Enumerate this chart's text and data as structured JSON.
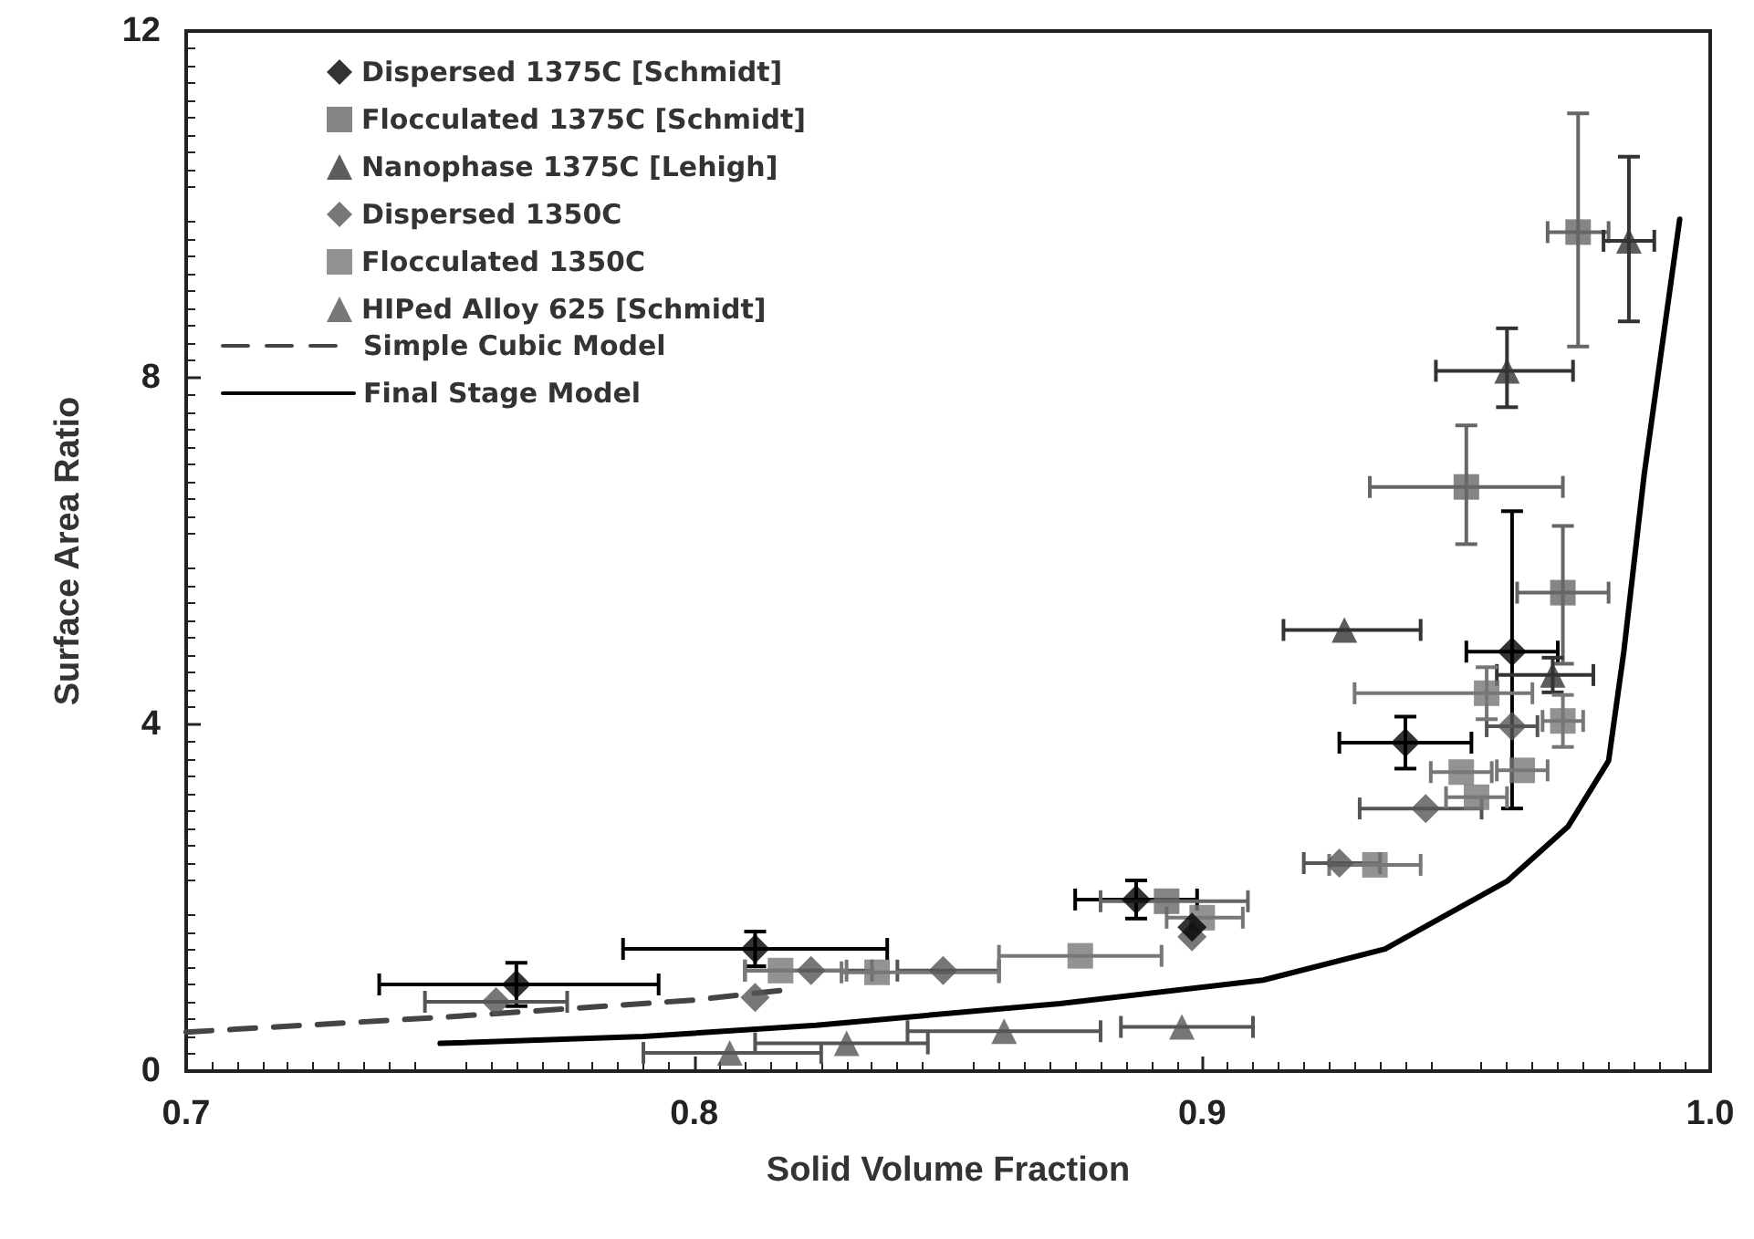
{
  "chart_data": {
    "type": "scatter",
    "xlabel": "Solid Volume Fraction",
    "ylabel": "Surface Area Ratio",
    "xlim": [
      0.7,
      1.0
    ],
    "xticks": [
      {
        "value": 0.7,
        "label": "0.7"
      },
      {
        "value": 0.8,
        "label": "0.8"
      },
      {
        "value": 0.9,
        "label": "0.9"
      },
      {
        "value": 1.0,
        "label": "1.0"
      }
    ],
    "ylim": [
      0,
      12
    ],
    "yticks": [
      0,
      4,
      8,
      12
    ],
    "grid": false,
    "legend": "top left",
    "series": [
      {
        "name": "Dispersed 1375C [Schmidt]",
        "color": "#000000",
        "marker": "diamond",
        "x": [
          0.765,
          0.812,
          0.887,
          0.898,
          0.94,
          0.961
        ],
        "values": [
          1.0,
          1.41,
          1.98,
          1.66,
          3.79,
          4.84
        ],
        "xerrors": [
          [
            0.738,
            0.793
          ],
          [
            0.786,
            0.838
          ],
          [
            0.875,
            0.899
          ],
          null,
          [
            0.927,
            0.953
          ],
          [
            0.952,
            0.97
          ]
        ],
        "errors": [
          0.25,
          0.2,
          0.22,
          null,
          0.3,
          [
            3.03,
            6.46
          ]
        ]
      },
      {
        "name": "Flocculated 1375C [Schmidt]",
        "color": "#666666",
        "marker": "square",
        "x": [
          0.893,
          0.952,
          0.971,
          0.974
        ],
        "values": [
          1.96,
          6.74,
          5.52,
          9.68
        ],
        "xerrors": [
          [
            0.88,
            0.909
          ],
          [
            0.933,
            0.971
          ],
          [
            0.962,
            0.98
          ],
          [
            0.968,
            0.98
          ]
        ],
        "errors": [
          null,
          [
            6.08,
            7.45
          ],
          [
            4.7,
            6.29
          ],
          [
            8.36,
            11.05
          ]
        ]
      },
      {
        "name": "Nanophase 1375C [Lehigh]",
        "color": "#333333",
        "marker": "triangle",
        "x": [
          0.928,
          0.96,
          0.969,
          0.984
        ],
        "values": [
          5.09,
          8.08,
          4.57,
          9.58
        ],
        "xerrors": [
          [
            0.916,
            0.943
          ],
          [
            0.946,
            0.973
          ],
          [
            0.958,
            0.977
          ],
          0.005
        ],
        "errors": [
          null,
          [
            7.66,
            8.57
          ],
          0.2,
          [
            8.65,
            10.55
          ]
        ]
      },
      {
        "name": "Dispersed 1350C",
        "color": "#555555",
        "marker": "diamond",
        "x": [
          0.761,
          0.812,
          0.823,
          0.849,
          0.898,
          0.927,
          0.944,
          0.961
        ],
        "values": [
          0.8,
          0.85,
          1.16,
          1.16,
          1.55,
          2.4,
          3.03,
          3.98
        ],
        "xerrors": [
          [
            0.747,
            0.775
          ],
          null,
          [
            0.81,
            0.835
          ],
          [
            0.84,
            0.86
          ],
          null,
          [
            0.92,
            0.935
          ],
          [
            0.931,
            0.955
          ],
          0.005
        ]
      },
      {
        "name": "Flocculated 1350C",
        "color": "#777777",
        "marker": "square",
        "x": [
          0.817,
          0.836,
          0.876,
          0.9,
          0.934,
          0.951,
          0.954,
          0.956,
          0.963,
          0.971
        ],
        "values": [
          1.16,
          1.14,
          1.33,
          1.77,
          2.38,
          3.45,
          3.16,
          4.36,
          3.47,
          4.04
        ],
        "xerrors": [
          [
            0.81,
            0.83
          ],
          [
            0.829,
            0.86
          ],
          [
            0.86,
            0.892
          ],
          [
            0.893,
            0.908
          ],
          [
            0.925,
            0.943
          ],
          0.006,
          0.006,
          [
            0.93,
            0.965
          ],
          0.005,
          0.004
        ],
        "errors": [
          null,
          null,
          null,
          null,
          null,
          null,
          null,
          0.3,
          null,
          0.3
        ]
      },
      {
        "name": "HIPed Alloy 625 [Schmidt]",
        "color": "#555555",
        "marker": "triangle",
        "x": [
          0.807,
          0.83,
          0.861,
          0.896
        ],
        "values": [
          0.21,
          0.32,
          0.46,
          0.51
        ],
        "xerrors": [
          [
            0.79,
            0.825
          ],
          [
            0.812,
            0.846
          ],
          [
            0.842,
            0.88
          ],
          [
            0.884,
            0.91
          ]
        ]
      },
      {
        "name": "Simple Cubic Model",
        "type": "line",
        "color": "#444444",
        "marker": "none",
        "line_style": "dashed",
        "x": [
          0.7,
          0.75,
          0.8,
          0.82
        ],
        "values": [
          0.45,
          0.62,
          0.82,
          0.95
        ]
      },
      {
        "name": "Final Stage Model",
        "type": "line",
        "color": "#000000",
        "marker": "none",
        "line_style": "solid",
        "x": [
          0.75,
          0.79,
          0.824,
          0.872,
          0.912,
          0.936,
          0.96,
          0.972,
          0.98,
          0.983,
          0.987,
          0.994
        ],
        "values": [
          0.32,
          0.4,
          0.53,
          0.78,
          1.05,
          1.41,
          2.19,
          2.82,
          3.58,
          4.84,
          6.88,
          9.83
        ]
      }
    ]
  }
}
